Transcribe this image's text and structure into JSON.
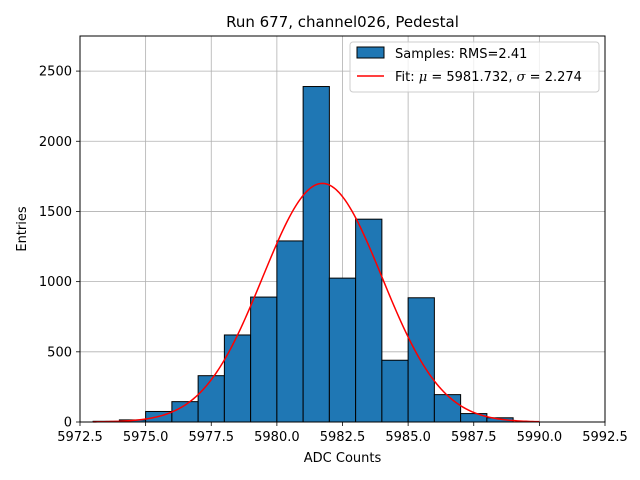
{
  "chart_data": {
    "type": "bar",
    "title": "Run 677, channel026, Pedestal",
    "xlabel": "ADC Counts",
    "ylabel": "Entries",
    "xlim": [
      5972.5,
      5992.5
    ],
    "ylim": [
      0,
      2750
    ],
    "xticks": [
      5972.5,
      5975.0,
      5977.5,
      5980.0,
      5982.5,
      5985.0,
      5987.5,
      5990.0,
      5992.5
    ],
    "xtick_labels": [
      "5972.5",
      "5975.0",
      "5977.5",
      "5980.0",
      "5982.5",
      "5985.0",
      "5987.5",
      "5990.0",
      "5992.5"
    ],
    "yticks": [
      0,
      500,
      1000,
      1500,
      2000,
      2500
    ],
    "ytick_labels": [
      "0",
      "500",
      "1000",
      "1500",
      "2000",
      "2500"
    ],
    "grid": true,
    "legend_position": "top-right",
    "series": [
      {
        "name": "Samples: RMS=2.41",
        "kind": "histogram",
        "color": "#1f77b4",
        "edge_color": "#000000",
        "bin_edges": [
          5973.0,
          5974.0,
          5975.0,
          5976.0,
          5977.0,
          5978.0,
          5979.0,
          5980.0,
          5981.0,
          5982.0,
          5983.0,
          5984.0,
          5985.0,
          5986.0,
          5987.0,
          5988.0,
          5989.0,
          5990.0
        ],
        "counts": [
          5,
          15,
          75,
          145,
          330,
          620,
          890,
          1290,
          2390,
          1025,
          1445,
          440,
          885,
          195,
          60,
          30,
          0
        ]
      },
      {
        "name": "Fit: μ = 5981.732, σ = 2.274",
        "kind": "line",
        "color": "#ff0000",
        "mu": 5981.732,
        "sigma": 2.274,
        "amplitude": 1700,
        "x_range": [
          5973.0,
          5990.0
        ]
      }
    ],
    "legend": [
      {
        "marker": "patch",
        "color": "#1f77b4",
        "prefix": "Samples: RMS=2.41",
        "label": "Samples: RMS=2.41"
      },
      {
        "marker": "line",
        "color": "#ff0000",
        "prefix": "Fit: ",
        "mu_sym": "μ",
        "mu_text": " = 5981.732, ",
        "sigma_sym": "σ",
        "sigma_text": " = 2.274",
        "label": "Fit: μ = 5981.732, σ = 2.274"
      }
    ]
  }
}
